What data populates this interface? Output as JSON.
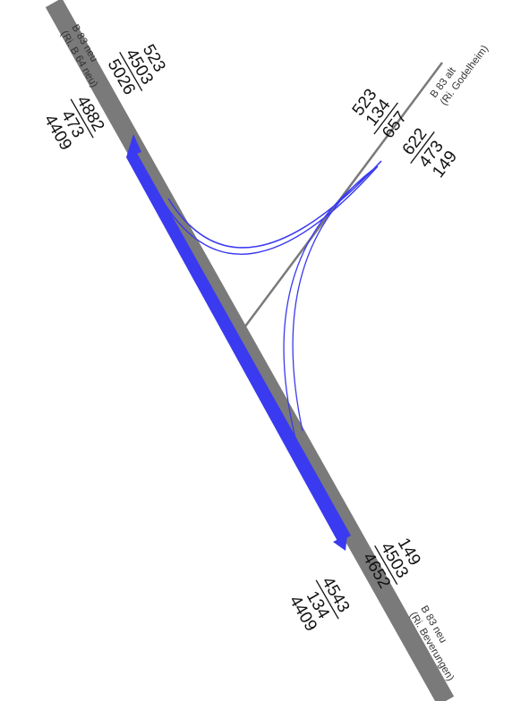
{
  "colors": {
    "road": "#7a7a7a",
    "flow": "#3a3af0",
    "text": "#111111"
  },
  "branches": {
    "nw": {
      "name": "B 83 neu",
      "direction": "(Ri. B 64 neu)",
      "incoming": {
        "parts": [
          "523",
          "4503"
        ],
        "total": "5026"
      },
      "outgoing": {
        "total": "4882",
        "parts": [
          "473",
          "4409"
        ]
      }
    },
    "ne": {
      "name": "B 83 alt",
      "direction": "(Ri. Godelheim)",
      "incoming": {
        "parts": [
          "523",
          "134"
        ],
        "total": "657"
      },
      "outgoing": {
        "total": "622",
        "parts": [
          "473",
          "149"
        ]
      }
    },
    "se": {
      "name": "B 83 neu",
      "direction": "(Ri. Beverungen)",
      "incoming": {
        "parts": [
          "149",
          "4503"
        ],
        "total": "4652"
      },
      "outgoing": {
        "total": "4543",
        "parts": [
          "134",
          "4409"
        ]
      }
    }
  }
}
